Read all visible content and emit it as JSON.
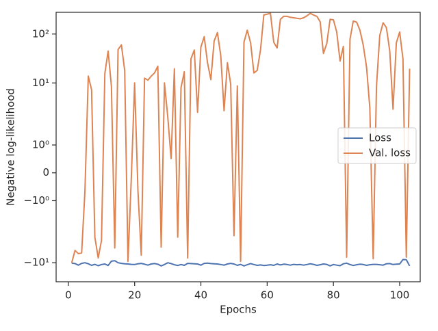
{
  "chart_data": {
    "type": "line",
    "xlabel": "Epochs",
    "ylabel": "Negative log-likelihood",
    "x": [
      1,
      2,
      3,
      4,
      5,
      6,
      7,
      8,
      9,
      10,
      11,
      12,
      13,
      14,
      15,
      16,
      17,
      18,
      19,
      20,
      21,
      22,
      23,
      24,
      25,
      26,
      27,
      28,
      29,
      30,
      31,
      32,
      33,
      34,
      35,
      36,
      37,
      38,
      39,
      40,
      41,
      42,
      43,
      44,
      45,
      46,
      47,
      48,
      49,
      50,
      51,
      52,
      53,
      54,
      55,
      56,
      57,
      58,
      59,
      60,
      61,
      62,
      63,
      64,
      65,
      66,
      67,
      68,
      69,
      70,
      71,
      72,
      73,
      74,
      75,
      76,
      77,
      78,
      79,
      80,
      81,
      82,
      83,
      84,
      85,
      86,
      87,
      88,
      89,
      90,
      91,
      92,
      93,
      94,
      95,
      96,
      97,
      98,
      99,
      100,
      101,
      102,
      103
    ],
    "series": [
      {
        "name": "Loss",
        "color": "#4c72b0",
        "values": [
          -10.2,
          -10.4,
          -11.2,
          -10.3,
          -10.0,
          -10.5,
          -11.3,
          -10.8,
          -11.5,
          -10.9,
          -10.6,
          -11.4,
          -9.3,
          -9.1,
          -10.0,
          -10.3,
          -10.5,
          -10.6,
          -10.8,
          -10.9,
          -10.5,
          -10.3,
          -10.7,
          -11.2,
          -10.6,
          -10.4,
          -10.7,
          -11.6,
          -10.9,
          -10.0,
          -10.4,
          -11.0,
          -11.4,
          -10.9,
          -11.3,
          -10.3,
          -10.4,
          -10.5,
          -10.6,
          -11.2,
          -10.3,
          -10.2,
          -10.4,
          -10.5,
          -10.6,
          -10.9,
          -11.2,
          -10.6,
          -10.3,
          -10.6,
          -11.3,
          -10.8,
          -11.6,
          -11.0,
          -10.4,
          -10.9,
          -11.3,
          -11.1,
          -11.4,
          -11.2,
          -11.0,
          -11.3,
          -10.6,
          -11.1,
          -10.7,
          -10.9,
          -11.2,
          -10.8,
          -11.0,
          -10.9,
          -11.2,
          -10.9,
          -10.5,
          -10.8,
          -11.3,
          -11.0,
          -10.6,
          -10.8,
          -11.6,
          -10.9,
          -11.2,
          -11.5,
          -10.5,
          -10.2,
          -10.9,
          -11.4,
          -11.0,
          -10.7,
          -10.9,
          -11.3,
          -11.0,
          -10.8,
          -10.8,
          -11.0,
          -11.2,
          -10.5,
          -10.4,
          -10.9,
          -10.7,
          -10.6,
          -8.6,
          -8.7,
          -11.6
        ]
      },
      {
        "name": "Val. loss",
        "color": "#dd8452",
        "values": [
          -10,
          -5.6,
          -6.5,
          -6.3,
          -0.66,
          13.8,
          7.3,
          -3.0,
          -8,
          -3.5,
          15.6,
          45,
          8.5,
          -5,
          48,
          60,
          18,
          -9.4,
          -0.17,
          10,
          -0.66,
          -7,
          12.5,
          11.4,
          13.8,
          16,
          22,
          -4.8,
          10,
          2.06,
          0.51,
          19.5,
          -3,
          8,
          17,
          -8,
          31,
          47,
          2.5,
          54,
          88,
          26,
          11.7,
          72,
          107,
          36,
          2.7,
          26,
          9.4,
          -2.8,
          8.7,
          -9.4,
          68,
          120,
          66,
          16,
          18,
          48,
          245,
          255,
          265,
          68,
          52,
          200,
          230,
          230,
          220,
          215,
          210,
          205,
          215,
          235,
          265,
          245,
          230,
          178,
          40,
          64,
          200,
          195,
          110,
          28,
          56,
          -7.7,
          78,
          185,
          175,
          120,
          60,
          21,
          3.1,
          -8.3,
          8.5,
          94,
          170,
          135,
          45,
          2.9,
          66,
          110,
          31,
          -7.7,
          19.5
        ]
      }
    ],
    "xlim": [
      -3.7,
      106.2
    ],
    "xticks": [
      0,
      20,
      40,
      60,
      80,
      100
    ],
    "ylim": [
      -24.5,
      278
    ],
    "yscale": "symlog",
    "linthresh": 2,
    "yticks": [
      {
        "value": 100,
        "label": "10²"
      },
      {
        "value": 10,
        "label": "10¹"
      },
      {
        "value": 1,
        "label": "10⁰"
      },
      0,
      {
        "value": -1,
        "label": "−10⁰"
      },
      {
        "value": -10,
        "label": "−10¹"
      }
    ],
    "grid": false,
    "legend": "center right"
  }
}
